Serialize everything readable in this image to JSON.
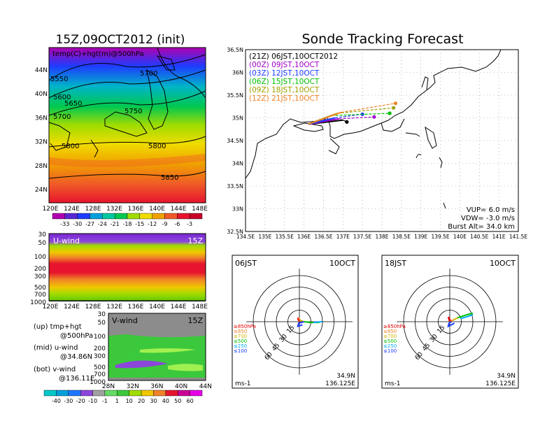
{
  "left_title": "15Z,09OCT2012 (init)",
  "right_title": "Sonde Tracking Forecast",
  "top_map": {
    "label": "temp(C)+hgt(m)@500hPa",
    "lon_ticks": [
      "120E",
      "124E",
      "128E",
      "132E",
      "136E",
      "140E",
      "144E",
      "148E"
    ],
    "lat_ticks": [
      "44N",
      "40N",
      "36N",
      "32N",
      "28N",
      "24N"
    ],
    "contour_labels": [
      "5550",
      "5600",
      "5650",
      "5700",
      "5700",
      "5750",
      "5800",
      "5800",
      "5850"
    ],
    "colorbar": [
      "-33",
      "-30",
      "-27",
      "-24",
      "-21",
      "-18",
      "-15",
      "-12",
      "-9",
      "-6",
      "-3"
    ]
  },
  "u_panel": {
    "label": "U-wind",
    "time": "15Z",
    "y_ticks": [
      "30",
      "50",
      "100",
      "200",
      "300",
      "500",
      "700",
      "1000"
    ],
    "x_ticks": [
      "120E",
      "124E",
      "128E",
      "132E",
      "136E",
      "140E",
      "144E",
      "148E"
    ]
  },
  "v_panel": {
    "label": "V-wind",
    "time": "15Z",
    "y_ticks": [
      "30",
      "50",
      "100",
      "200",
      "300",
      "500",
      "700",
      "1000"
    ],
    "x_ticks": [
      "28N",
      "32N",
      "36N",
      "40N",
      "44N"
    ],
    "colorbar": [
      "-40",
      "-30",
      "-20",
      "-10",
      "-1",
      "1",
      "10",
      "20",
      "30",
      "40",
      "50",
      "60"
    ]
  },
  "legend_notes": [
    {
      "line1": "(up) tmp+hgt",
      "line2": "@500hPa"
    },
    {
      "line1": "(mid) u-wind",
      "line2": "@34.86N"
    },
    {
      "line1": "(bot) v-wind",
      "line2": "@136.11E"
    }
  ],
  "track_map": {
    "lat_ticks": [
      "36.5N",
      "36N",
      "35.5N",
      "35N",
      "34.5N",
      "34N",
      "33.5N",
      "33N",
      "32.5N"
    ],
    "lon_ticks": [
      "134.5E",
      "135E",
      "135.5E",
      "136E",
      "136.5E",
      "137E",
      "137.5E",
      "138E",
      "138.5E",
      "139E",
      "139.5E",
      "140E",
      "140.5E",
      "141E",
      "141.5E"
    ],
    "legend": [
      {
        "text": "(21Z)  06JST,10OCT2012",
        "color": "#000000"
      },
      {
        "text": "(00Z)  09JST,10OCT",
        "color": "#a000c8"
      },
      {
        "text": "(03Z)  12JST,10OCT",
        "color": "#1e3cff"
      },
      {
        "text": "(06Z)  15JST,10OCT",
        "color": "#00c000"
      },
      {
        "text": "(09Z)  18JST,10OCT",
        "color": "#a0a000"
      },
      {
        "text": "(12Z)  21JST,10OCT",
        "color": "#f08228"
      }
    ],
    "params": [
      "VUP= 6.0 m/s",
      "VDW= -3.0 m/s",
      "Burst Alt= 34.0 km"
    ]
  },
  "hodo_left": {
    "time": "06JST",
    "date": "10OCT",
    "lat": "34.9N",
    "lon": "136.125E",
    "unit": "ms-1"
  },
  "hodo_right": {
    "time": "18JST",
    "date": "10OCT",
    "lat": "34.9N",
    "lon": "136.125E",
    "unit": "ms-1"
  },
  "hodo_rings": [
    "15",
    "30",
    "45",
    "60"
  ],
  "hodo_levels": [
    {
      "text": "≥850hPa",
      "color": "#e60000"
    },
    {
      "text": "≤850",
      "color": "#f08228"
    },
    {
      "text": "≤700",
      "color": "#d2b400"
    },
    {
      "text": "≤500",
      "color": "#00c000"
    },
    {
      "text": "≤250",
      "color": "#00aaff"
    },
    {
      "text": "≤100",
      "color": "#1e3cff"
    }
  ],
  "chart_data": {
    "type": "scatter",
    "title": "Sonde Tracking Forecast",
    "xlim": [
      134.5,
      141.5
    ],
    "ylim": [
      32.5,
      36.5
    ],
    "series": [
      {
        "name": "(21Z)  06JST,10OCT2012",
        "launch": [
          136.11,
          34.86
        ],
        "landing": [
          137.1,
          34.91
        ]
      },
      {
        "name": "(00Z)  09JST,10OCT",
        "launch": [
          136.11,
          34.86
        ],
        "landing": [
          137.8,
          35.02
        ]
      },
      {
        "name": "(03Z)  12JST,10OCT",
        "launch": [
          136.11,
          34.86
        ],
        "landing": [
          137.5,
          35.08
        ]
      },
      {
        "name": "(06Z)  15JST,10OCT",
        "launch": [
          136.11,
          34.86
        ],
        "landing": [
          138.2,
          35.1
        ]
      },
      {
        "name": "(09Z)  18JST,10OCT",
        "launch": [
          136.11,
          34.86
        ],
        "landing": [
          138.3,
          35.22
        ]
      },
      {
        "name": "(12Z)  21JST,10OCT",
        "launch": [
          136.11,
          34.86
        ],
        "landing": [
          138.35,
          35.32
        ]
      }
    ],
    "burst_points": [
      [
        137.0,
        34.95
      ],
      [
        136.9,
        34.98
      ],
      [
        136.8,
        35.0
      ],
      [
        136.7,
        35.05
      ],
      [
        136.85,
        35.1
      ],
      [
        136.95,
        35.12
      ]
    ]
  }
}
